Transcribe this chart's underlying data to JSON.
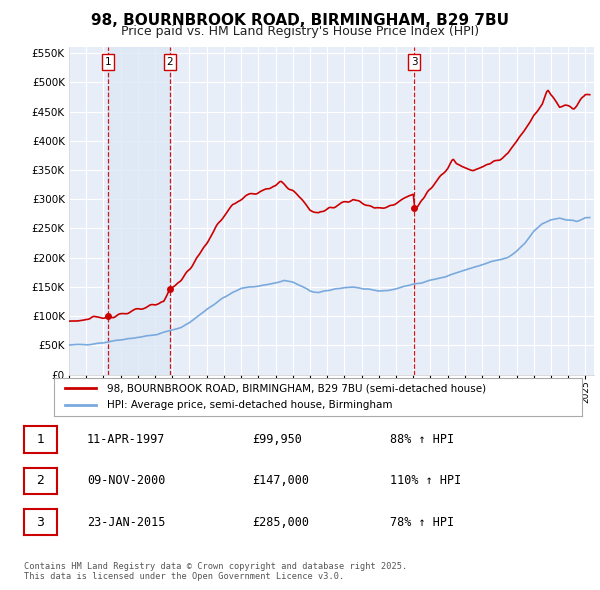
{
  "title": "98, BOURNBROOK ROAD, BIRMINGHAM, B29 7BU",
  "subtitle": "Price paid vs. HM Land Registry's House Price Index (HPI)",
  "title_fontsize": 11,
  "subtitle_fontsize": 9,
  "background_color": "#ffffff",
  "plot_bg_color": "#e8eef8",
  "grid_color": "#ffffff",
  "red_color": "#cc0000",
  "blue_color": "#7aaadd",
  "shade_color": "#dde8f5",
  "ylim": [
    0,
    560000
  ],
  "yticks": [
    0,
    50000,
    100000,
    150000,
    200000,
    250000,
    300000,
    350000,
    400000,
    450000,
    500000,
    550000
  ],
  "purchases": [
    {
      "date_num": 1997.27,
      "price": 99950,
      "label": "1"
    },
    {
      "date_num": 2000.86,
      "price": 147000,
      "label": "2"
    },
    {
      "date_num": 2015.06,
      "price": 285000,
      "label": "3"
    }
  ],
  "vline_dates": [
    1997.27,
    2000.86,
    2015.06
  ],
  "legend_entries": [
    "98, BOURNBROOK ROAD, BIRMINGHAM, B29 7BU (semi-detached house)",
    "HPI: Average price, semi-detached house, Birmingham"
  ],
  "table_rows": [
    {
      "num": "1",
      "date": "11-APR-1997",
      "price": "£99,950",
      "hpi": "88% ↑ HPI"
    },
    {
      "num": "2",
      "date": "09-NOV-2000",
      "price": "£147,000",
      "hpi": "110% ↑ HPI"
    },
    {
      "num": "3",
      "date": "23-JAN-2015",
      "price": "£285,000",
      "hpi": "78% ↑ HPI"
    }
  ],
  "footnote": "Contains HM Land Registry data © Crown copyright and database right 2025.\nThis data is licensed under the Open Government Licence v3.0.",
  "xmin": 1995.0,
  "xmax": 2025.5
}
